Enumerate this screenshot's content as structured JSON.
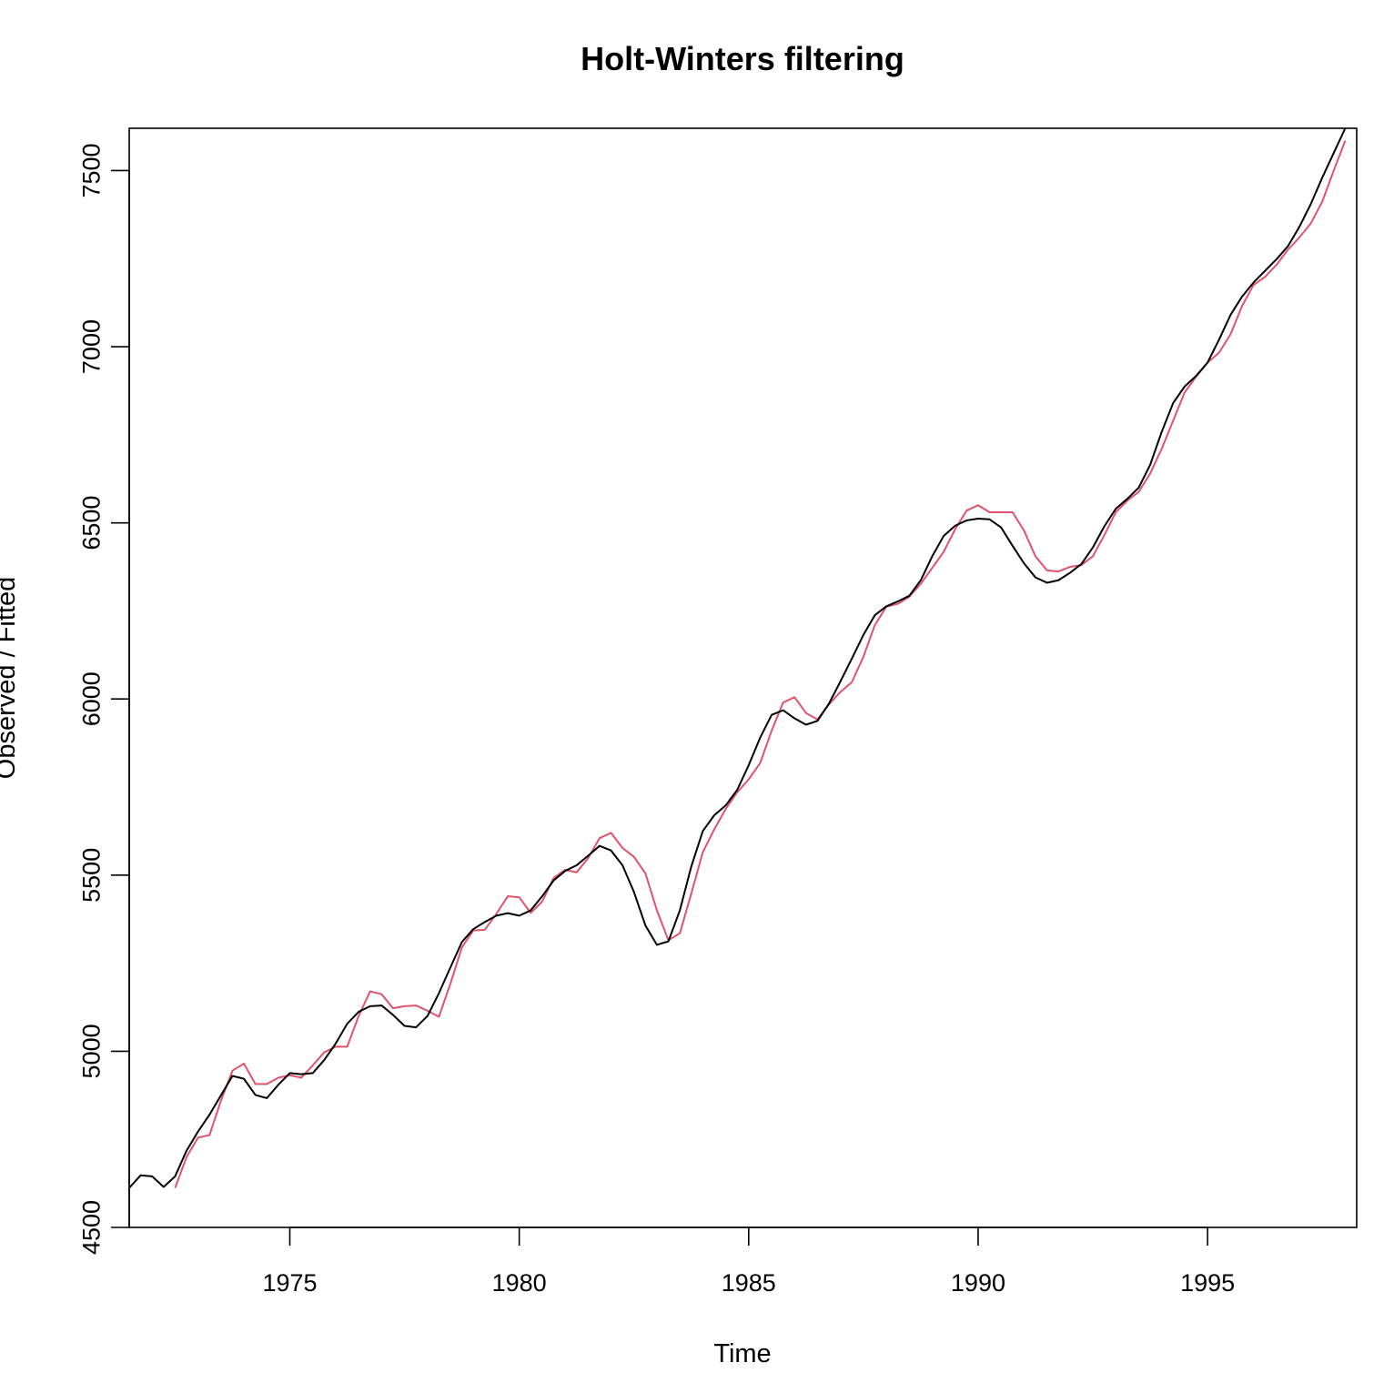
{
  "chart_data": {
    "type": "line",
    "title": "Holt-Winters filtering",
    "xlabel": "Time",
    "ylabel": "Observed / Fitted",
    "xlim": [
      1971.5,
      1998.25
    ],
    "ylim": [
      4500,
      7620
    ],
    "x_ticks": [
      1975,
      1980,
      1985,
      1990,
      1995
    ],
    "x_tick_labels": [
      "1975",
      "1980",
      "1985",
      "1990",
      "1995"
    ],
    "y_ticks": [
      4500,
      5000,
      5500,
      6000,
      6500,
      7000,
      7500
    ],
    "y_tick_labels": [
      "4500",
      "5000",
      "5500",
      "6000",
      "6500",
      "7000",
      "7500"
    ],
    "grid": false,
    "legend": "none",
    "series": [
      {
        "role": "observed",
        "color": "#000000",
        "points": [
          [
            1971.5,
            4612
          ],
          [
            1971.75,
            4648
          ],
          [
            1972.0,
            4645
          ],
          [
            1972.25,
            4615
          ],
          [
            1972.5,
            4645
          ],
          [
            1972.75,
            4718
          ],
          [
            1973.0,
            4772
          ],
          [
            1973.25,
            4820
          ],
          [
            1973.5,
            4875
          ],
          [
            1973.75,
            4930
          ],
          [
            1974.0,
            4922
          ],
          [
            1974.25,
            4876
          ],
          [
            1974.5,
            4867
          ],
          [
            1974.75,
            4905
          ],
          [
            1975.0,
            4938
          ],
          [
            1975.25,
            4935
          ],
          [
            1975.5,
            4938
          ],
          [
            1975.75,
            4975
          ],
          [
            1976.0,
            5022
          ],
          [
            1976.25,
            5078
          ],
          [
            1976.5,
            5112
          ],
          [
            1976.75,
            5128
          ],
          [
            1977.0,
            5130
          ],
          [
            1977.25,
            5103
          ],
          [
            1977.5,
            5072
          ],
          [
            1977.75,
            5068
          ],
          [
            1978.0,
            5100
          ],
          [
            1978.25,
            5165
          ],
          [
            1978.5,
            5238
          ],
          [
            1978.75,
            5310
          ],
          [
            1979.0,
            5347
          ],
          [
            1979.25,
            5367
          ],
          [
            1979.5,
            5385
          ],
          [
            1979.75,
            5392
          ],
          [
            1980.0,
            5385
          ],
          [
            1980.25,
            5400
          ],
          [
            1980.5,
            5440
          ],
          [
            1980.75,
            5485
          ],
          [
            1981.0,
            5512
          ],
          [
            1981.25,
            5528
          ],
          [
            1981.5,
            5555
          ],
          [
            1981.75,
            5583
          ],
          [
            1982.0,
            5570
          ],
          [
            1982.25,
            5528
          ],
          [
            1982.5,
            5452
          ],
          [
            1982.75,
            5357
          ],
          [
            1983.0,
            5302
          ],
          [
            1983.25,
            5312
          ],
          [
            1983.5,
            5400
          ],
          [
            1983.75,
            5525
          ],
          [
            1984.0,
            5625
          ],
          [
            1984.25,
            5670
          ],
          [
            1984.5,
            5698
          ],
          [
            1984.75,
            5742
          ],
          [
            1985.0,
            5812
          ],
          [
            1985.25,
            5890
          ],
          [
            1985.5,
            5955
          ],
          [
            1985.75,
            5968
          ],
          [
            1986.0,
            5945
          ],
          [
            1986.25,
            5927
          ],
          [
            1986.5,
            5938
          ],
          [
            1986.75,
            5987
          ],
          [
            1987.0,
            6050
          ],
          [
            1987.25,
            6115
          ],
          [
            1987.5,
            6182
          ],
          [
            1987.75,
            6238
          ],
          [
            1988.0,
            6263
          ],
          [
            1988.25,
            6277
          ],
          [
            1988.5,
            6293
          ],
          [
            1988.75,
            6337
          ],
          [
            1989.0,
            6405
          ],
          [
            1989.25,
            6463
          ],
          [
            1989.5,
            6492
          ],
          [
            1989.75,
            6507
          ],
          [
            1990.0,
            6512
          ],
          [
            1990.25,
            6510
          ],
          [
            1990.5,
            6487
          ],
          [
            1990.75,
            6435
          ],
          [
            1991.0,
            6385
          ],
          [
            1991.25,
            6345
          ],
          [
            1991.5,
            6330
          ],
          [
            1991.75,
            6337
          ],
          [
            1992.0,
            6358
          ],
          [
            1992.25,
            6383
          ],
          [
            1992.5,
            6430
          ],
          [
            1992.75,
            6490
          ],
          [
            1993.0,
            6540
          ],
          [
            1993.25,
            6568
          ],
          [
            1993.5,
            6600
          ],
          [
            1993.75,
            6665
          ],
          [
            1994.0,
            6758
          ],
          [
            1994.25,
            6840
          ],
          [
            1994.5,
            6887
          ],
          [
            1994.75,
            6917
          ],
          [
            1995.0,
            6955
          ],
          [
            1995.25,
            7020
          ],
          [
            1995.5,
            7090
          ],
          [
            1995.75,
            7142
          ],
          [
            1996.0,
            7182
          ],
          [
            1996.25,
            7215
          ],
          [
            1996.5,
            7248
          ],
          [
            1996.75,
            7285
          ],
          [
            1997.0,
            7340
          ],
          [
            1997.25,
            7405
          ],
          [
            1997.5,
            7480
          ],
          [
            1997.75,
            7550
          ],
          [
            1998.0,
            7620
          ]
        ]
      },
      {
        "role": "fitted",
        "color": "#df536b",
        "points": [
          [
            1972.5,
            4612
          ],
          [
            1972.75,
            4700
          ],
          [
            1973.0,
            4755
          ],
          [
            1973.25,
            4762
          ],
          [
            1973.5,
            4860
          ],
          [
            1973.75,
            4945
          ],
          [
            1974.0,
            4965
          ],
          [
            1974.25,
            4907
          ],
          [
            1974.5,
            4907
          ],
          [
            1974.75,
            4925
          ],
          [
            1975.0,
            4932
          ],
          [
            1975.25,
            4925
          ],
          [
            1975.5,
            4960
          ],
          [
            1975.75,
            4997
          ],
          [
            1976.0,
            5013
          ],
          [
            1976.25,
            5013
          ],
          [
            1976.5,
            5100
          ],
          [
            1976.75,
            5170
          ],
          [
            1977.0,
            5162
          ],
          [
            1977.25,
            5122
          ],
          [
            1977.5,
            5128
          ],
          [
            1977.75,
            5130
          ],
          [
            1978.0,
            5115
          ],
          [
            1978.25,
            5098
          ],
          [
            1978.5,
            5192
          ],
          [
            1978.75,
            5295
          ],
          [
            1979.0,
            5343
          ],
          [
            1979.25,
            5345
          ],
          [
            1979.5,
            5390
          ],
          [
            1979.75,
            5440
          ],
          [
            1980.0,
            5437
          ],
          [
            1980.25,
            5393
          ],
          [
            1980.5,
            5425
          ],
          [
            1980.75,
            5492
          ],
          [
            1981.0,
            5515
          ],
          [
            1981.25,
            5508
          ],
          [
            1981.5,
            5548
          ],
          [
            1981.75,
            5605
          ],
          [
            1982.0,
            5620
          ],
          [
            1982.25,
            5577
          ],
          [
            1982.5,
            5552
          ],
          [
            1982.75,
            5505
          ],
          [
            1983.0,
            5400
          ],
          [
            1983.25,
            5315
          ],
          [
            1983.5,
            5335
          ],
          [
            1983.75,
            5448
          ],
          [
            1984.0,
            5565
          ],
          [
            1984.25,
            5630
          ],
          [
            1984.5,
            5688
          ],
          [
            1984.75,
            5735
          ],
          [
            1985.0,
            5772
          ],
          [
            1985.25,
            5818
          ],
          [
            1985.5,
            5910
          ],
          [
            1985.75,
            5990
          ],
          [
            1986.0,
            6005
          ],
          [
            1986.25,
            5960
          ],
          [
            1986.5,
            5942
          ],
          [
            1986.75,
            5985
          ],
          [
            1987.0,
            6020
          ],
          [
            1987.25,
            6048
          ],
          [
            1987.5,
            6120
          ],
          [
            1987.75,
            6210
          ],
          [
            1988.0,
            6262
          ],
          [
            1988.25,
            6270
          ],
          [
            1988.5,
            6290
          ],
          [
            1988.75,
            6327
          ],
          [
            1989.0,
            6372
          ],
          [
            1989.25,
            6418
          ],
          [
            1989.5,
            6482
          ],
          [
            1989.75,
            6535
          ],
          [
            1990.0,
            6550
          ],
          [
            1990.25,
            6530
          ],
          [
            1990.5,
            6530
          ],
          [
            1990.75,
            6530
          ],
          [
            1991.0,
            6478
          ],
          [
            1991.25,
            6405
          ],
          [
            1991.5,
            6365
          ],
          [
            1991.75,
            6362
          ],
          [
            1992.0,
            6375
          ],
          [
            1992.25,
            6380
          ],
          [
            1992.5,
            6405
          ],
          [
            1992.75,
            6465
          ],
          [
            1993.0,
            6530
          ],
          [
            1993.25,
            6563
          ],
          [
            1993.5,
            6588
          ],
          [
            1993.75,
            6640
          ],
          [
            1994.0,
            6710
          ],
          [
            1994.25,
            6790
          ],
          [
            1994.5,
            6870
          ],
          [
            1994.75,
            6915
          ],
          [
            1995.0,
            6955
          ],
          [
            1995.25,
            6983
          ],
          [
            1995.5,
            7035
          ],
          [
            1995.75,
            7115
          ],
          [
            1996.0,
            7175
          ],
          [
            1996.25,
            7198
          ],
          [
            1996.5,
            7232
          ],
          [
            1996.75,
            7275
          ],
          [
            1997.0,
            7310
          ],
          [
            1997.25,
            7350
          ],
          [
            1997.5,
            7412
          ],
          [
            1997.75,
            7500
          ],
          [
            1998.0,
            7585
          ]
        ]
      }
    ]
  }
}
